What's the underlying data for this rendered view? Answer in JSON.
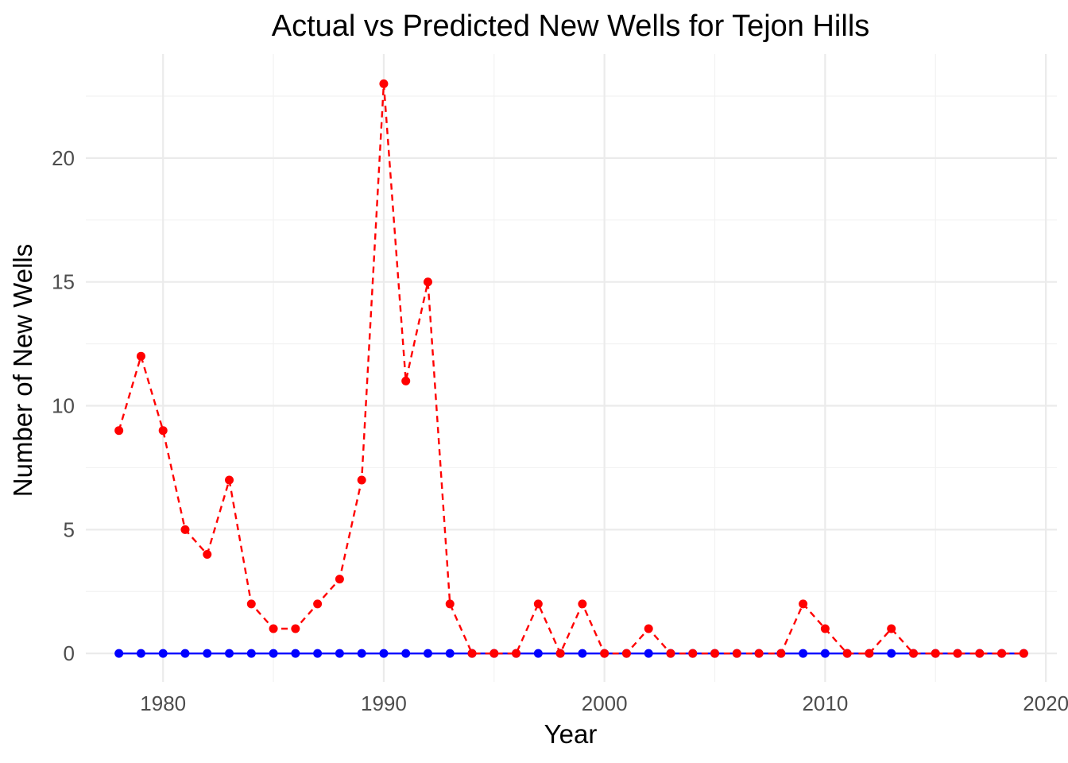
{
  "chart_data": {
    "type": "line",
    "title": "Actual vs Predicted New Wells for Tejon Hills",
    "xlabel": "Year",
    "ylabel": "Number of New Wells",
    "xlim": [
      1976.5,
      2020.5
    ],
    "ylim": [
      -1.15,
      24.2
    ],
    "x_ticks": [
      1980,
      1990,
      2000,
      2010,
      2020
    ],
    "x_tick_labels": [
      "1980",
      "1990",
      "2000",
      "2010",
      "2020"
    ],
    "y_ticks": [
      0,
      5,
      10,
      15,
      20
    ],
    "y_tick_labels": [
      "0",
      "5",
      "10",
      "15",
      "20"
    ],
    "grid": true,
    "legend": "none",
    "x": [
      1978,
      1979,
      1980,
      1981,
      1982,
      1983,
      1984,
      1985,
      1986,
      1987,
      1988,
      1989,
      1990,
      1991,
      1992,
      1993,
      1994,
      1995,
      1996,
      1997,
      1998,
      1999,
      2000,
      2001,
      2002,
      2003,
      2004,
      2005,
      2006,
      2007,
      2008,
      2009,
      2010,
      2011,
      2012,
      2013,
      2014,
      2015,
      2016,
      2017,
      2018,
      2019
    ],
    "series": [
      {
        "color": "#0000ff",
        "line_style": "solid",
        "values": [
          0,
          0,
          0,
          0,
          0,
          0,
          0,
          0,
          0,
          0,
          0,
          0,
          0,
          0,
          0,
          0,
          0,
          0,
          0,
          0,
          0,
          0,
          0,
          0,
          0,
          0,
          0,
          0,
          0,
          0,
          0,
          0,
          0,
          0,
          0,
          0,
          0,
          0,
          0,
          0,
          0,
          0
        ]
      },
      {
        "color": "#ff0000",
        "line_style": "dashed",
        "values": [
          9,
          12,
          9,
          5,
          4,
          7,
          2,
          1,
          1,
          2,
          3,
          7,
          23,
          11,
          15,
          2,
          0,
          0,
          0,
          2,
          0,
          2,
          0,
          0,
          1,
          0,
          0,
          0,
          0,
          0,
          0,
          2,
          1,
          0,
          0,
          1,
          0,
          0,
          0,
          0,
          0,
          0
        ]
      }
    ]
  }
}
